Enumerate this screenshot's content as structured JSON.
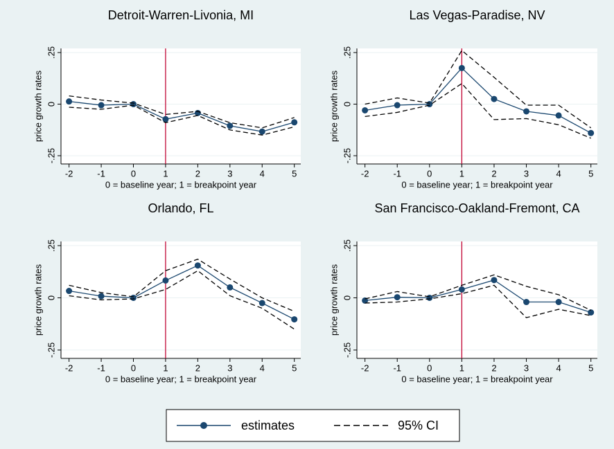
{
  "chart_data": [
    {
      "type": "line",
      "title": "Detroit-Warren-Livonia, MI",
      "x_label": "0 = baseline year; 1 = breakpoint year",
      "y_label": "price growth rates",
      "x": [
        -2,
        -1,
        0,
        1,
        2,
        3,
        4,
        5
      ],
      "series": [
        {
          "name": "estimates",
          "color": "#1a476f",
          "values": [
            0.013,
            -0.005,
            0,
            -0.073,
            -0.043,
            -0.105,
            -0.133,
            -0.088
          ]
        },
        {
          "name": "95% CI",
          "color": "#000000",
          "values": [
            0.04,
            0.02,
            0.005,
            -0.05,
            -0.035,
            -0.09,
            -0.115,
            -0.065
          ]
        },
        {
          "name": "95% CI",
          "color": "#000000",
          "values": [
            -0.015,
            -0.025,
            -0.005,
            -0.09,
            -0.055,
            -0.125,
            -0.15,
            -0.11
          ]
        }
      ],
      "xlim": [
        -2.25,
        5.2
      ],
      "xticks": [
        -2,
        -1,
        0,
        1,
        2,
        3,
        4,
        5
      ],
      "ylim": [
        -0.29,
        0.27
      ],
      "yticks": [
        {
          "value": -0.25,
          "label": "-.25"
        },
        0,
        {
          "value": 0.25,
          "label": ".25"
        }
      ],
      "xline": 1,
      "xline_color": "#c10534",
      "grid": true
    },
    {
      "type": "line",
      "title": "Las Vegas-Paradise, NV",
      "x_label": "0 = baseline year; 1 = breakpoint year",
      "y_label": "price growth rates",
      "x": [
        -2,
        -1,
        0,
        1,
        2,
        3,
        4,
        5
      ],
      "series": [
        {
          "name": "estimates",
          "color": "#1a476f",
          "values": [
            -0.03,
            -0.005,
            0,
            0.175,
            0.025,
            -0.035,
            -0.055,
            -0.14
          ]
        },
        {
          "name": "95% CI",
          "color": "#000000",
          "values": [
            0,
            0.03,
            0.005,
            0.26,
            0.13,
            -0.005,
            -0.005,
            -0.115
          ]
        },
        {
          "name": "95% CI",
          "color": "#000000",
          "values": [
            -0.06,
            -0.04,
            -0.005,
            0.1,
            -0.075,
            -0.07,
            -0.1,
            -0.165
          ]
        }
      ],
      "xlim": [
        -2.25,
        5.2
      ],
      "xticks": [
        -2,
        -1,
        0,
        1,
        2,
        3,
        4,
        5
      ],
      "ylim": [
        -0.29,
        0.27
      ],
      "yticks": [
        {
          "value": -0.25,
          "label": "-.25"
        },
        0,
        {
          "value": 0.25,
          "label": ".25"
        }
      ],
      "xline": 1,
      "xline_color": "#c10534",
      "grid": true
    },
    {
      "type": "line",
      "title": "Orlando, FL",
      "x_label": "0 = baseline year; 1 = breakpoint year",
      "y_label": "price growth rates",
      "x": [
        -2,
        -1,
        0,
        1,
        2,
        3,
        4,
        5
      ],
      "series": [
        {
          "name": "estimates",
          "color": "#1a476f",
          "values": [
            0.033,
            0.008,
            0,
            0.083,
            0.155,
            0.05,
            -0.025,
            -0.103
          ]
        },
        {
          "name": "95% CI",
          "color": "#000000",
          "values": [
            0.06,
            0.025,
            0.005,
            0.13,
            0.185,
            0.09,
            0,
            -0.065
          ]
        },
        {
          "name": "95% CI",
          "color": "#000000",
          "values": [
            0.01,
            -0.01,
            -0.005,
            0.04,
            0.13,
            0.01,
            -0.05,
            -0.15
          ]
        }
      ],
      "xlim": [
        -2.25,
        5.2
      ],
      "xticks": [
        -2,
        -1,
        0,
        1,
        2,
        3,
        4,
        5
      ],
      "ylim": [
        -0.29,
        0.27
      ],
      "yticks": [
        {
          "value": -0.25,
          "label": "-.25"
        },
        0,
        {
          "value": 0.25,
          "label": ".25"
        }
      ],
      "xline": 1,
      "xline_color": "#c10534",
      "grid": true
    },
    {
      "type": "line",
      "title": "San Francisco-Oakland-Fremont, CA",
      "x_label": "0 = baseline year; 1 = breakpoint year",
      "y_label": "price growth rates",
      "x": [
        -2,
        -1,
        0,
        1,
        2,
        3,
        4,
        5
      ],
      "series": [
        {
          "name": "estimates",
          "color": "#1a476f",
          "values": [
            -0.013,
            0.003,
            0,
            0.04,
            0.085,
            -0.02,
            -0.02,
            -0.07
          ]
        },
        {
          "name": "95% CI",
          "color": "#000000",
          "values": [
            -0.005,
            0.03,
            0.005,
            0.06,
            0.11,
            0.055,
            0.015,
            -0.06
          ]
        },
        {
          "name": "95% CI",
          "color": "#000000",
          "values": [
            -0.025,
            -0.02,
            -0.005,
            0.02,
            0.06,
            -0.095,
            -0.055,
            -0.085
          ]
        }
      ],
      "xlim": [
        -2.25,
        5.2
      ],
      "xticks": [
        -2,
        -1,
        0,
        1,
        2,
        3,
        4,
        5
      ],
      "ylim": [
        -0.29,
        0.27
      ],
      "yticks": [
        {
          "value": -0.25,
          "label": "-.25"
        },
        0,
        {
          "value": 0.25,
          "label": ".25"
        }
      ],
      "xline": 1,
      "xline_color": "#c10534",
      "grid": true
    }
  ]
}
